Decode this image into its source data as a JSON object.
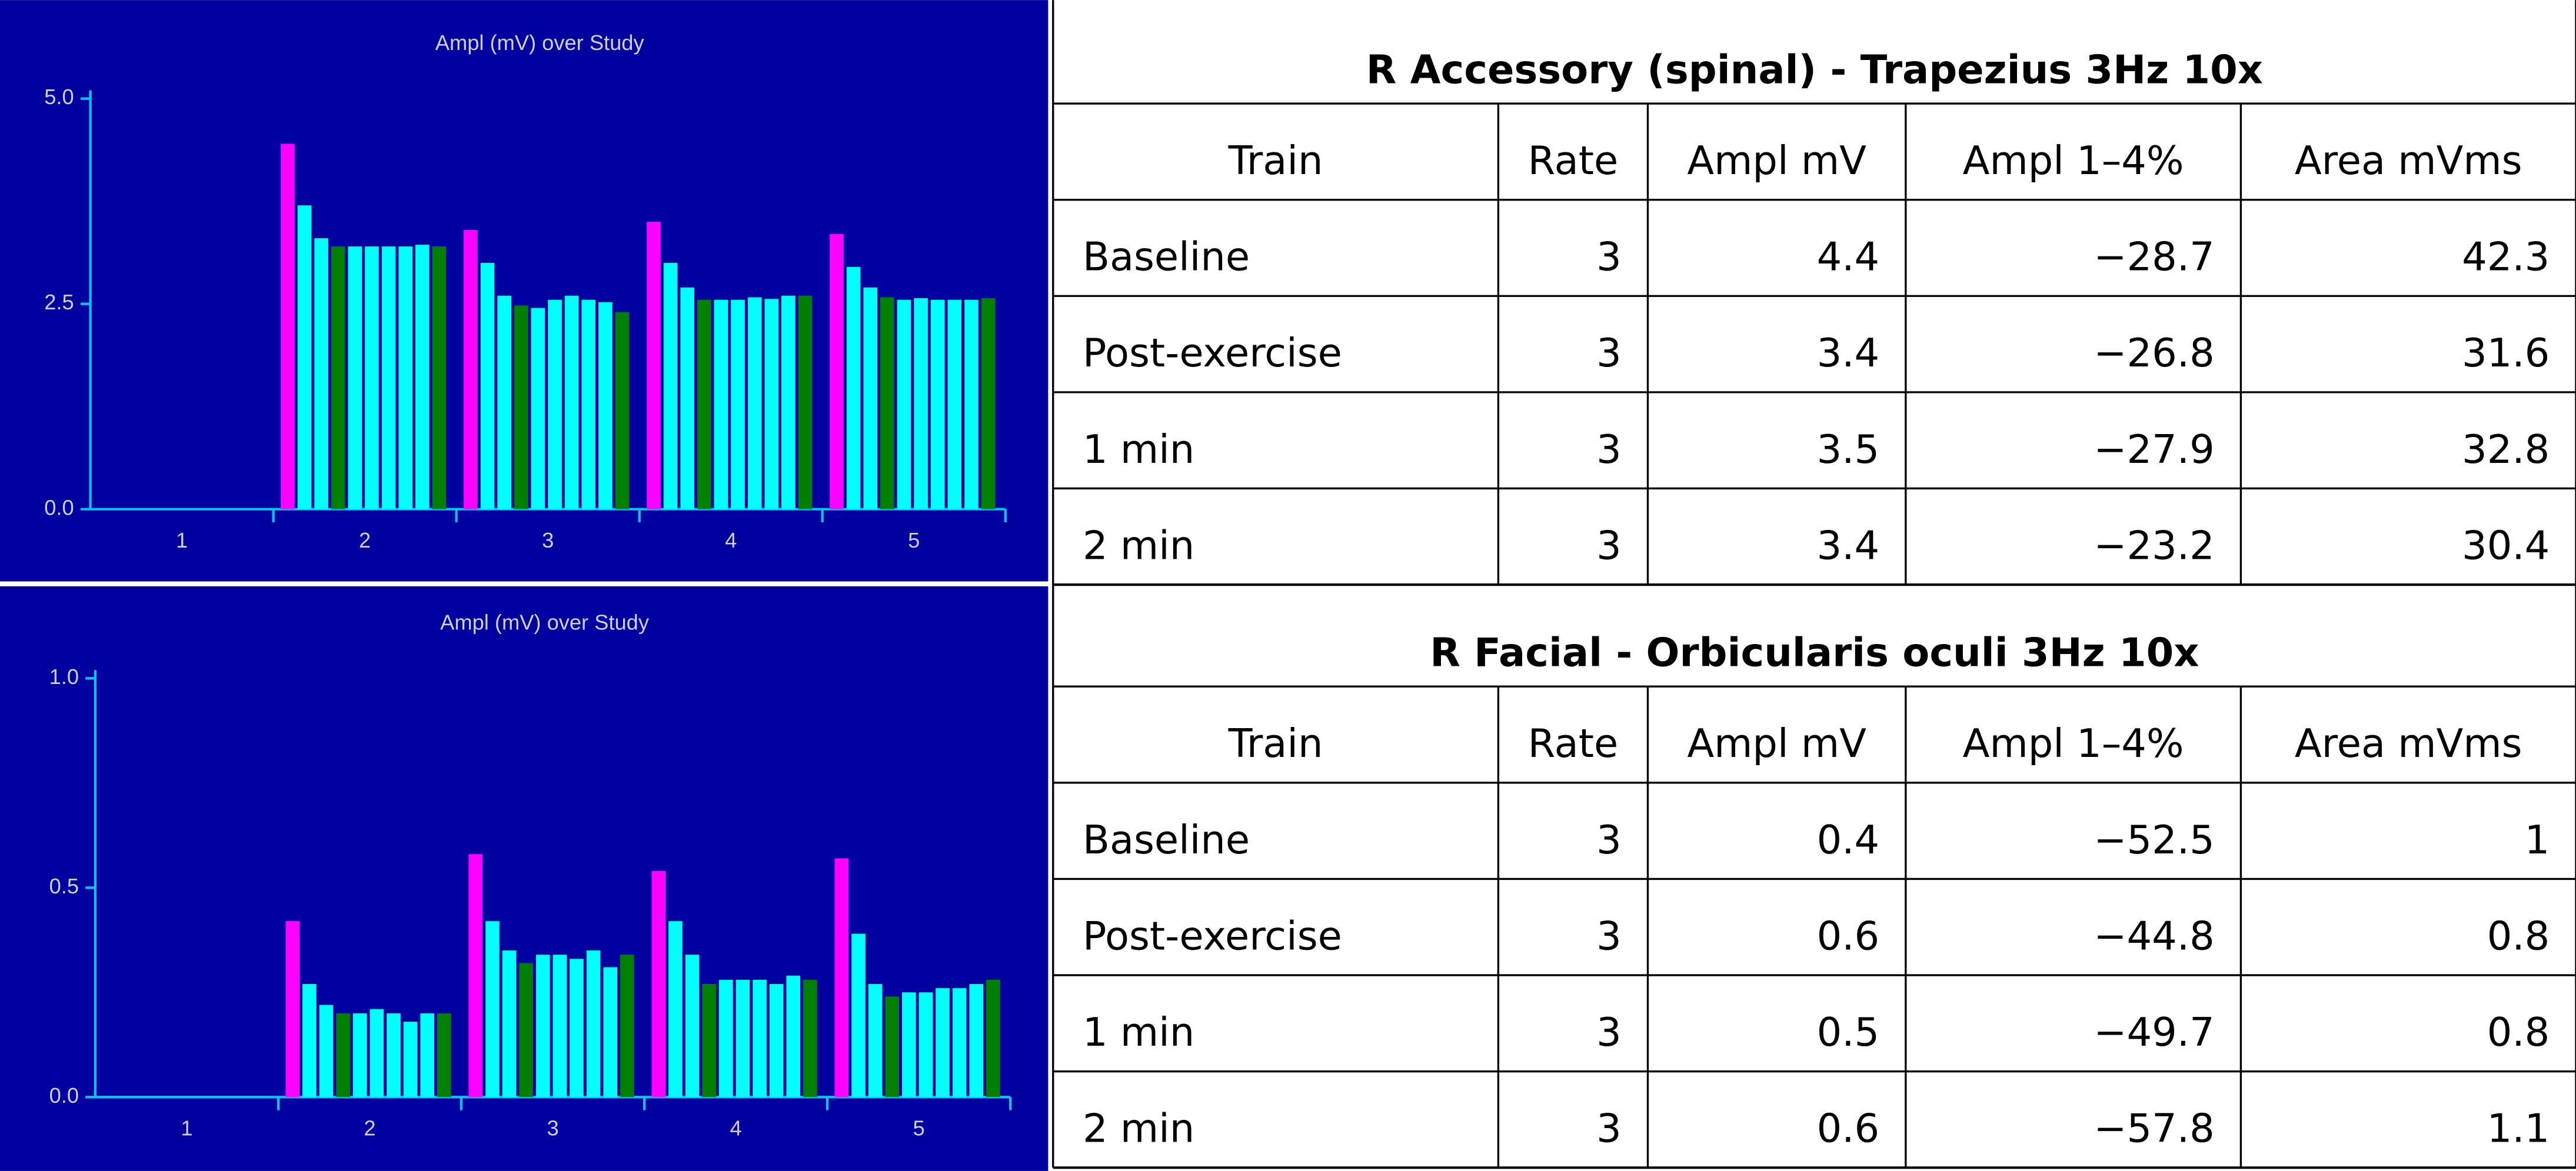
{
  "chart_data": [
    {
      "type": "bar",
      "title": "Ampl (mV) over Study",
      "categories": [
        "1",
        "2",
        "3",
        "4",
        "5"
      ],
      "ylim": [
        0,
        5
      ],
      "yticks": [
        {
          "value": 0,
          "label": "0.0"
        },
        {
          "value": 2.5,
          "label": "2.5"
        },
        {
          "value": 5,
          "label": "5.0"
        }
      ],
      "series": [
        {
          "color": "#ff00ff",
          "values": [
            null,
            4.45,
            3.4,
            3.5,
            3.35
          ]
        },
        {
          "color": "#00ffff",
          "values": [
            null,
            3.7,
            3.0,
            3.0,
            2.95
          ]
        },
        {
          "color": "#00ffff",
          "values": [
            null,
            3.3,
            2.6,
            2.7,
            2.7
          ]
        },
        {
          "color": "#008000",
          "values": [
            null,
            3.2,
            2.48,
            2.55,
            2.58
          ]
        },
        {
          "color": "#00ffff",
          "values": [
            null,
            3.2,
            2.45,
            2.55,
            2.55
          ]
        },
        {
          "color": "#00ffff",
          "values": [
            null,
            3.2,
            2.55,
            2.55,
            2.57
          ]
        },
        {
          "color": "#00ffff",
          "values": [
            null,
            3.2,
            2.6,
            2.58,
            2.55
          ]
        },
        {
          "color": "#00ffff",
          "values": [
            null,
            3.2,
            2.55,
            2.56,
            2.55
          ]
        },
        {
          "color": "#00ffff",
          "values": [
            null,
            3.22,
            2.52,
            2.6,
            2.55
          ]
        },
        {
          "color": "#008000",
          "values": [
            null,
            3.2,
            2.4,
            2.6,
            2.57
          ]
        }
      ]
    },
    {
      "type": "bar",
      "title": "Ampl (mV) over Study",
      "categories": [
        "1",
        "2",
        "3",
        "4",
        "5"
      ],
      "ylim": [
        0,
        1
      ],
      "yticks": [
        {
          "value": 0,
          "label": "0.0"
        },
        {
          "value": 0.5,
          "label": "0.5"
        },
        {
          "value": 1,
          "label": "1.0"
        }
      ],
      "series": [
        {
          "color": "#ff00ff",
          "values": [
            null,
            0.42,
            0.58,
            0.54,
            0.57
          ]
        },
        {
          "color": "#00ffff",
          "values": [
            null,
            0.27,
            0.42,
            0.42,
            0.39
          ]
        },
        {
          "color": "#00ffff",
          "values": [
            null,
            0.22,
            0.35,
            0.34,
            0.27
          ]
        },
        {
          "color": "#008000",
          "values": [
            null,
            0.2,
            0.32,
            0.27,
            0.24
          ]
        },
        {
          "color": "#00ffff",
          "values": [
            null,
            0.2,
            0.34,
            0.28,
            0.25
          ]
        },
        {
          "color": "#00ffff",
          "values": [
            null,
            0.21,
            0.34,
            0.28,
            0.25
          ]
        },
        {
          "color": "#00ffff",
          "values": [
            null,
            0.2,
            0.33,
            0.28,
            0.26
          ]
        },
        {
          "color": "#00ffff",
          "values": [
            null,
            0.18,
            0.35,
            0.27,
            0.26
          ]
        },
        {
          "color": "#00ffff",
          "values": [
            null,
            0.2,
            0.31,
            0.29,
            0.27
          ]
        },
        {
          "color": "#008000",
          "values": [
            null,
            0.2,
            0.34,
            0.28,
            0.28
          ]
        }
      ]
    }
  ],
  "tables": [
    {
      "title": "R Accessory (spinal) - Trapezius 3Hz 10x",
      "header": [
        "Train",
        "Rate",
        "Ampl mV",
        "Ampl 1–4%",
        "Area mVms"
      ],
      "rows": [
        [
          "Baseline",
          "3",
          "4.4",
          "−28.7",
          "42.3"
        ],
        [
          "Post-exercise",
          "3",
          "3.4",
          "−26.8",
          "31.6"
        ],
        [
          "1 min",
          "3",
          "3.5",
          "−27.9",
          "32.8"
        ],
        [
          "2 min",
          "3",
          "3.4",
          "−23.2",
          "30.4"
        ]
      ]
    },
    {
      "title": "R Facial - Orbicularis oculi 3Hz 10x",
      "header": [
        "Train",
        "Rate",
        "Ampl mV",
        "Ampl 1–4%",
        "Area mVms"
      ],
      "rows": [
        [
          "Baseline",
          "3",
          "0.4",
          "−52.5",
          "1"
        ],
        [
          "Post-exercise",
          "3",
          "0.6",
          "−44.8",
          "0.8"
        ],
        [
          "1 min",
          "3",
          "0.5",
          "−49.7",
          "0.8"
        ],
        [
          "2 min",
          "3",
          "0.6",
          "−57.8",
          "1.1"
        ]
      ]
    }
  ]
}
